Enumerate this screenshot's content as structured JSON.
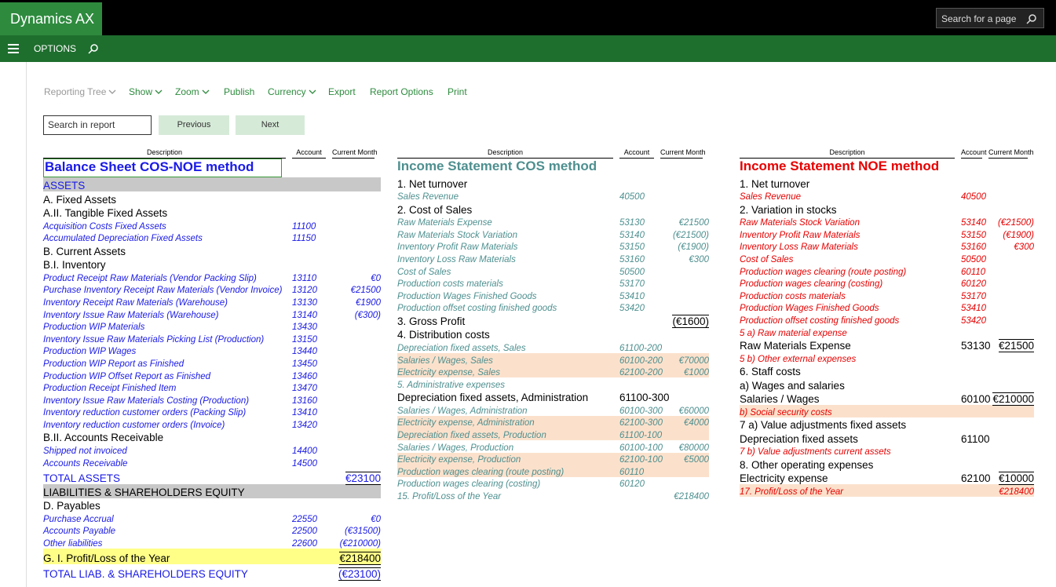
{
  "app": {
    "name": "Dynamics AX",
    "search_placeholder": "Search for a page",
    "menu": "OPTIONS"
  },
  "toolbar": {
    "items": [
      "Reporting Tree",
      "Show",
      "Zoom",
      "Publish",
      "Currency",
      "Export",
      "Report Options",
      "Print"
    ],
    "search_placeholder": "Search in report",
    "previous": "Previous",
    "next": "Next"
  },
  "reports": [
    {
      "title": "Balance Sheet COS-NOE method",
      "columns": [
        "Description",
        "Account",
        "Current Month"
      ],
      "rows": [
        {
          "label": "ASSETS"
        },
        {
          "label": "A. Fixed Assets"
        },
        {
          "label": "A.II. Tangible Fixed Assets"
        },
        {
          "label": "Acquisition Costs Fixed Assets",
          "account": "11100"
        },
        {
          "label": "Accumulated Depreciation Fixed Assets",
          "account": "11150"
        },
        {
          "label": "B. Current Assets"
        },
        {
          "label": "B.I. Inventory"
        },
        {
          "label": "Product Receipt Raw Materials (Vendor Packing Slip)",
          "account": "13110",
          "amount": "€0"
        },
        {
          "label": "Purchase Inventory Receipt Raw Materials (Vendor Invoice)",
          "account": "13120",
          "amount": "€21500"
        },
        {
          "label": "Inventory Receipt Raw Materials (Warehouse)",
          "account": "13130",
          "amount": "€1900"
        },
        {
          "label": "Inventory Issue Raw Materials (Warehouse)",
          "account": "13140",
          "amount": "(€300)"
        },
        {
          "label": "Production WIP Materials",
          "account": "13430"
        },
        {
          "label": "Inventory Issue Raw Materials Picking List (Production)",
          "account": "13150"
        },
        {
          "label": "Production WIP Wages",
          "account": "13440"
        },
        {
          "label": "Production WIP Report as Finished",
          "account": "13450"
        },
        {
          "label": "Production WIP Offset Report as Finished",
          "account": "13460"
        },
        {
          "label": "Production Receipt Finished Item",
          "account": "13470"
        },
        {
          "label": "Inventory Issue Raw Materials Costing (Production)",
          "account": "13160"
        },
        {
          "label": "Inventory reduction customer orders (Packing Slip)",
          "account": "13410"
        },
        {
          "label": "Inventory reduction customer orders (Invoice)",
          "account": "13420"
        },
        {
          "label": "B.II. Accounts Receivable"
        },
        {
          "label": "Shipped not invoiced",
          "account": "14400"
        },
        {
          "label": "Accounts Receivable",
          "account": "14500"
        },
        {
          "label": "TOTAL ASSETS",
          "amount": "€23100"
        },
        {
          "label": "LIABILITIES & SHAREHOLDERS EQUITY"
        },
        {
          "label": "D. Payables"
        },
        {
          "label": "Purchase Accrual",
          "account": "22550",
          "amount": "€0"
        },
        {
          "label": "Accounts Payable",
          "account": "22500",
          "amount": "(€31500)"
        },
        {
          "label": "Other liabilities",
          "account": "22600",
          "amount": "(€210000)"
        },
        {
          "label": "G. I. Profit/Loss of the Year",
          "amount": "€218400"
        },
        {
          "label": "TOTAL LIAB. & SHAREHOLDERS EQUITY",
          "amount": "(€23100)"
        }
      ]
    },
    {
      "title": "Income Statement COS method",
      "columns": [
        "Description",
        "Account",
        "Current Month"
      ],
      "rows": [
        {
          "label": "1. Net turnover"
        },
        {
          "label": "Sales Revenue",
          "account": "40500"
        },
        {
          "label": "2. Cost of Sales"
        },
        {
          "label": "Raw Materials Expense",
          "account": "53130",
          "amount": "€21500"
        },
        {
          "label": "Raw Materials Stock Variation",
          "account": "53140",
          "amount": "(€21500)"
        },
        {
          "label": "Inventory Profit Raw Materials",
          "account": "53150",
          "amount": "(€1900)"
        },
        {
          "label": "Inventory Loss Raw Materials",
          "account": "53160",
          "amount": "€300"
        },
        {
          "label": "Cost of Sales",
          "account": "50500"
        },
        {
          "label": "Production costs materials",
          "account": "53170"
        },
        {
          "label": "Production Wages Finished Goods",
          "account": "53410"
        },
        {
          "label": "Production offset costing finished goods",
          "account": "53420"
        },
        {
          "label": "3. Gross Profit",
          "amount": "(€1600)"
        },
        {
          "label": "4. Distribution costs"
        },
        {
          "label": "Depreciation fixed assets, Sales",
          "account": "61100-200"
        },
        {
          "label": "Salaries / Wages, Sales",
          "account": "60100-200",
          "amount": "€70000"
        },
        {
          "label": "Electricity expense, Sales",
          "account": "62100-200",
          "amount": "€1000"
        },
        {
          "label": "5. Administrative expenses"
        },
        {
          "label": "Depreciation fixed assets, Administration",
          "account": "61100-300"
        },
        {
          "label": "Salaries / Wages, Administration",
          "account": "60100-300",
          "amount": "€60000"
        },
        {
          "label": "Electricity expense, Administration",
          "account": "62100-300",
          "amount": "€4000"
        },
        {
          "label": "Depreciation fixed assets, Production",
          "account": "61100-100"
        },
        {
          "label": "Salaries / Wages, Production",
          "account": "60100-100",
          "amount": "€80000"
        },
        {
          "label": "Electricity expense, Production",
          "account": "62100-100",
          "amount": "€5000"
        },
        {
          "label": "Production wages clearing (route posting)",
          "account": "60110"
        },
        {
          "label": "Production wages clearing (costing)",
          "account": "60120"
        },
        {
          "label": "15. Profit/Loss of the Year",
          "amount": "€218400"
        }
      ]
    },
    {
      "title": "Income Statement NOE method",
      "columns": [
        "Description",
        "Account",
        "Current Month"
      ],
      "rows": [
        {
          "label": "1. Net turnover"
        },
        {
          "label": "Sales Revenue",
          "account": "40500"
        },
        {
          "label": "2. Variation in stocks"
        },
        {
          "label": "Raw Materials Stock Variation",
          "account": "53140",
          "amount": "(€21500)"
        },
        {
          "label": "Inventory Profit Raw Materials",
          "account": "53150",
          "amount": "(€1900)"
        },
        {
          "label": "Inventory Loss Raw Materials",
          "account": "53160",
          "amount": "€300"
        },
        {
          "label": "Cost of Sales",
          "account": "50500"
        },
        {
          "label": "Production wages clearing (route posting)",
          "account": "60110"
        },
        {
          "label": "Production wages clearing (costing)",
          "account": "60120"
        },
        {
          "label": "Production costs materials",
          "account": "53170"
        },
        {
          "label": "Production Wages Finished Goods",
          "account": "53410"
        },
        {
          "label": "Production offset costing finished goods",
          "account": "53420"
        },
        {
          "label": "5 a) Raw material expense"
        },
        {
          "label": "Raw Materials Expense",
          "account": "53130",
          "amount": "€21500"
        },
        {
          "label": "5 b) Other external expenses"
        },
        {
          "label": "6. Staff costs"
        },
        {
          "label": "a) Wages and salaries"
        },
        {
          "label": "Salaries / Wages",
          "account": "60100",
          "amount": "€210000"
        },
        {
          "label": "b) Social security costs"
        },
        {
          "label": "7 a) Value adjustments fixed assets"
        },
        {
          "label": "Depreciation fixed assets",
          "account": "61100"
        },
        {
          "label": "7 b) Value adjustments current assets"
        },
        {
          "label": "8. Other operating expenses"
        },
        {
          "label": "Electricity expense",
          "account": "62100",
          "amount": "€10000"
        },
        {
          "label": "17. Profit/Loss of the Year",
          "amount": "€218400"
        }
      ]
    }
  ]
}
